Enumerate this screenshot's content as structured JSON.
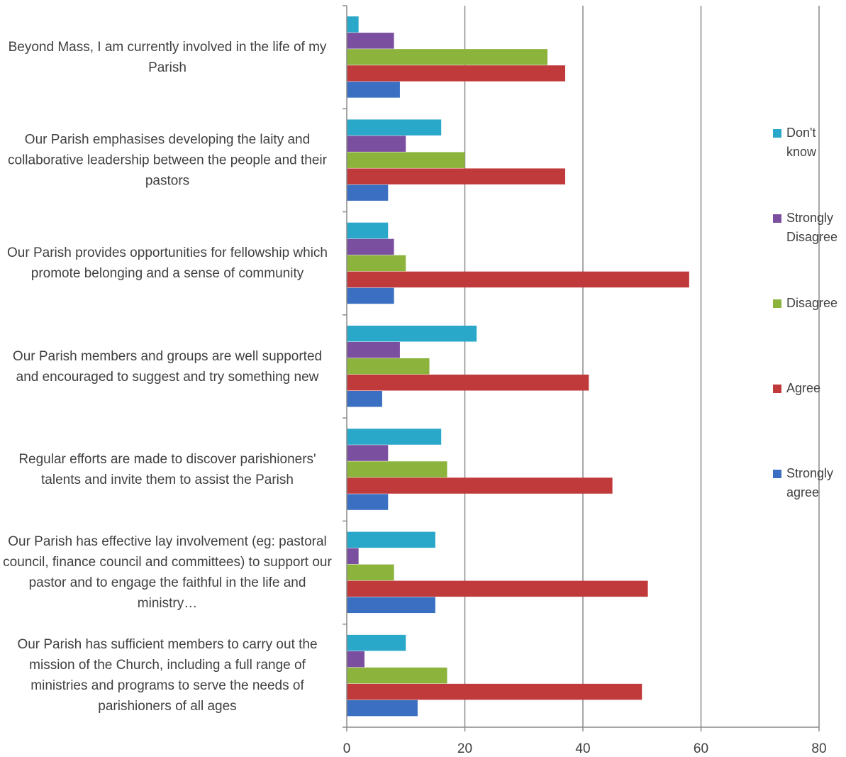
{
  "chart_data": {
    "type": "barh",
    "categories": [
      "Beyond Mass, I am currently involved in the life of my Parish",
      "Our Parish emphasises developing the laity and collaborative leadership between the people and their pastors",
      "Our Parish provides opportunities for fellowship which promote belonging and a sense of community",
      "Our Parish members and groups are well supported and encouraged to suggest and try something new",
      "Regular efforts are made to discover parishioners' talents and invite them to assist the Parish",
      "Our Parish has effective lay involvement (eg: pastoral council, finance council and committees) to support our pastor and to engage the faithful in the life and ministry…",
      "Our Parish has sufficient members to carry out the mission of the Church, including a full range of ministries and programs to serve the needs of parishioners of all ages"
    ],
    "series": [
      {
        "name": "Don't know",
        "color": "#2aa8c9",
        "values": [
          2,
          16,
          7,
          22,
          16,
          15,
          10
        ]
      },
      {
        "name": "Strongly Disagree",
        "color": "#7a4f9f",
        "values": [
          8,
          10,
          8,
          9,
          7,
          2,
          3
        ]
      },
      {
        "name": "Disagree",
        "color": "#8cb43c",
        "values": [
          34,
          20,
          10,
          14,
          17,
          8,
          17
        ]
      },
      {
        "name": "Agree",
        "color": "#c0393b",
        "values": [
          37,
          37,
          58,
          41,
          45,
          51,
          50
        ]
      },
      {
        "name": "Strongly agree",
        "color": "#3a6fc1",
        "values": [
          9,
          7,
          8,
          6,
          7,
          15,
          12
        ]
      }
    ],
    "xlim": [
      0,
      80
    ],
    "xticks": [
      0,
      20,
      40,
      60,
      80
    ],
    "grid": true,
    "legend": "right"
  }
}
